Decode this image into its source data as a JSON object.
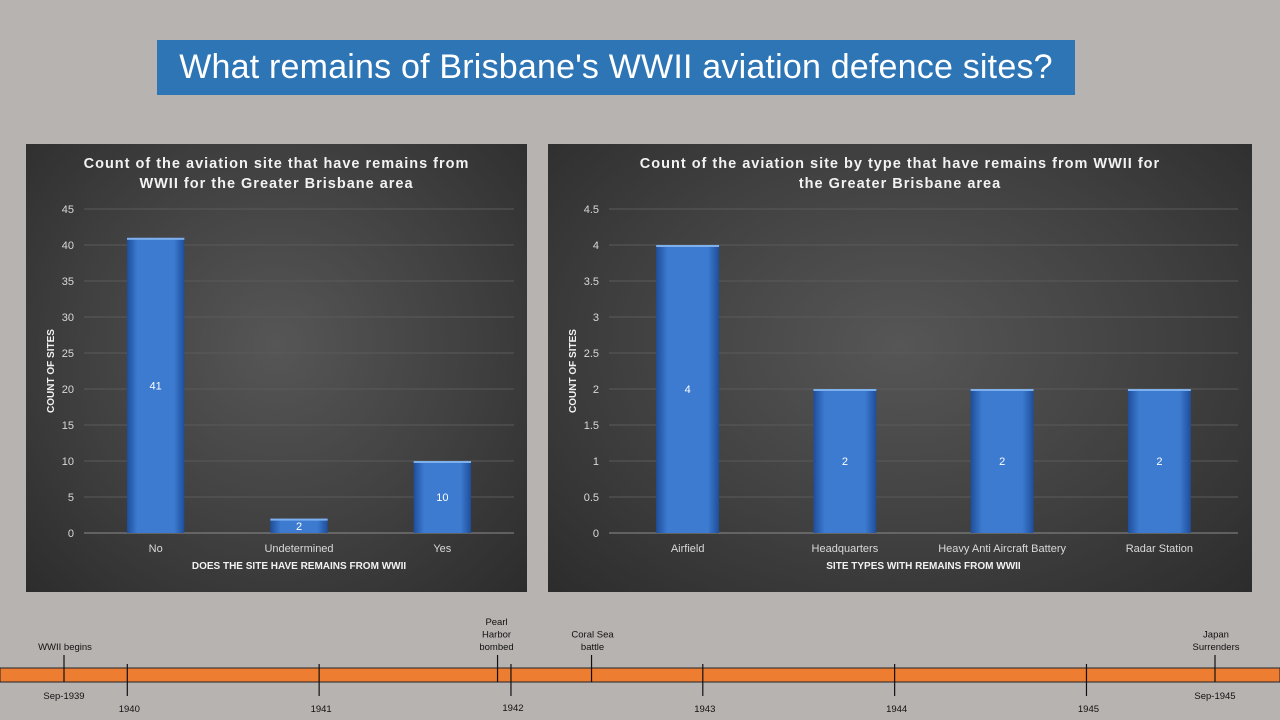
{
  "page": {
    "title": "What remains of Brisbane's WWII aviation defence sites?"
  },
  "colors": {
    "background": "#b7b3b1",
    "title_banner": "#2e75b6",
    "bar": "#3c7bd0",
    "timeline_bar": "#ed7d31"
  },
  "chart_data": [
    {
      "type": "bar",
      "title_lines": [
        "Count of the aviation site that have remains from",
        "WWII for the Greater Brisbane area"
      ],
      "categories": [
        "No",
        "Undetermined",
        "Yes"
      ],
      "values": [
        41,
        2,
        10
      ],
      "data_labels": [
        "41",
        "2",
        "10"
      ],
      "xlabel": "DOES THE SITE HAVE REMAINS FROM WWII",
      "ylabel": "COUNT OF SITES",
      "ylim": [
        0,
        45
      ],
      "yticks": [
        0,
        5,
        10,
        15,
        20,
        25,
        30,
        35,
        40,
        45
      ],
      "ytick_labels": [
        "0",
        "5",
        "10",
        "15",
        "20",
        "25",
        "30",
        "35",
        "40",
        "45"
      ],
      "grid": true
    },
    {
      "type": "bar",
      "title_lines": [
        "Count of the aviation site by type that have remains from WWII for",
        "the Greater Brisbane area"
      ],
      "categories": [
        "Airfield",
        "Headquarters",
        "Heavy Anti Aircraft Battery",
        "Radar Station"
      ],
      "values": [
        4,
        2,
        2,
        2
      ],
      "data_labels": [
        "4",
        "2",
        "2",
        "2"
      ],
      "xlabel": "SITE TYPES WITH REMAINS FROM WWII",
      "ylabel": "COUNT OF SITES",
      "ylim": [
        0,
        4.5
      ],
      "yticks": [
        0,
        0.5,
        1,
        1.5,
        2,
        2.5,
        3,
        3.5,
        4,
        4.5
      ],
      "ytick_labels": [
        "0",
        "0.5",
        "1",
        "1.5",
        "2",
        "2.5",
        "3",
        "3.5",
        "4",
        "4.5"
      ],
      "grid": true
    }
  ],
  "timeline": {
    "start": 1939.67,
    "end": 1945.67,
    "years": [
      {
        "value": 1940,
        "label": "1940"
      },
      {
        "value": 1941,
        "label": "1941"
      },
      {
        "value": 1942,
        "label": "1942"
      },
      {
        "value": 1943,
        "label": "1943"
      },
      {
        "value": 1944,
        "label": "1944"
      },
      {
        "value": 1945,
        "label": "1945"
      }
    ],
    "endpoints": [
      {
        "value": 1939.67,
        "label": "Sep-1939"
      },
      {
        "value": 1945.67,
        "label": "Sep-1945"
      }
    ],
    "events": [
      {
        "value": 1939.67,
        "lines": [
          "WWII begins"
        ]
      },
      {
        "value": 1941.93,
        "lines": [
          "Pearl",
          "Harbor",
          "bombed"
        ]
      },
      {
        "value": 1942.42,
        "lines": [
          "Coral Sea",
          "battle"
        ]
      },
      {
        "value": 1945.67,
        "lines": [
          "Japan",
          "Surrenders"
        ]
      }
    ]
  }
}
